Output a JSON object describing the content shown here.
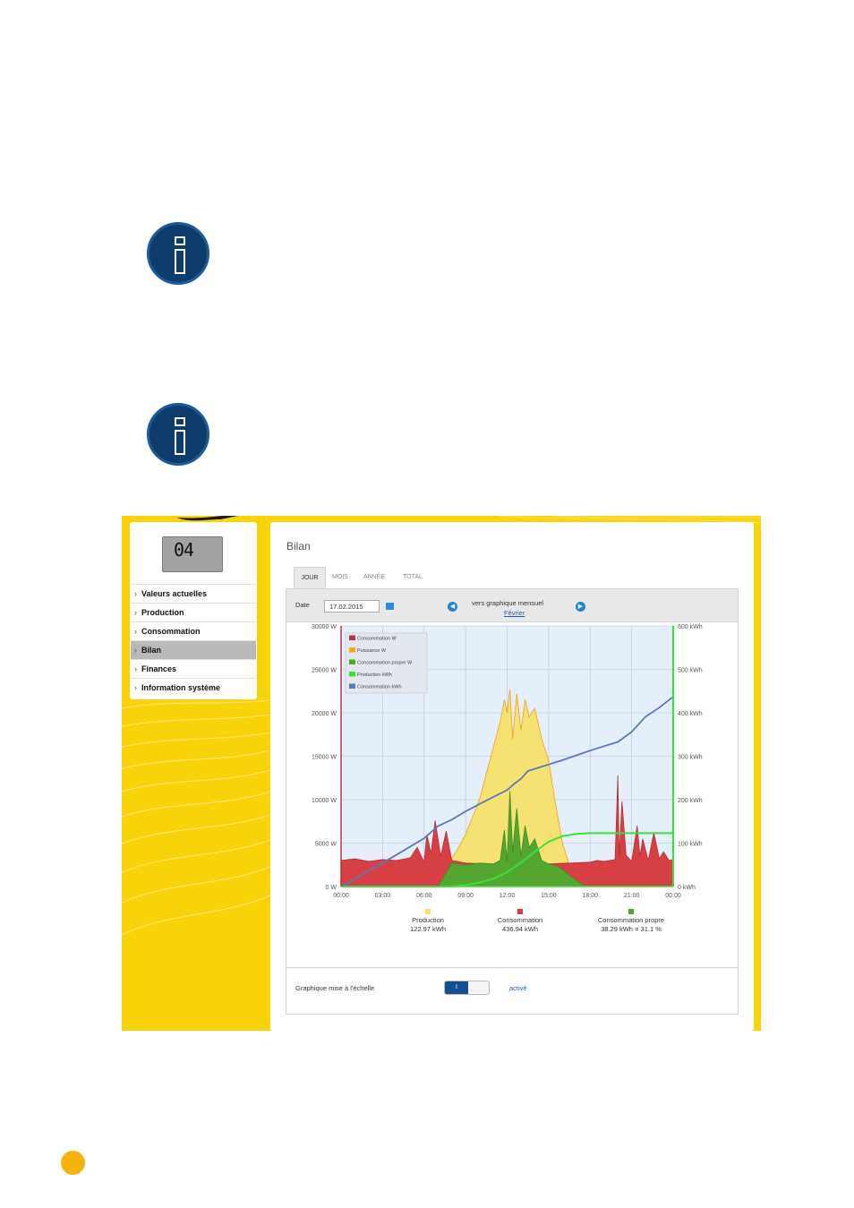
{
  "app": {
    "title": "Bilan",
    "tabs": [
      "JOUR",
      "MOIS",
      "ANNÉE",
      "TOTAL"
    ],
    "active_tab": "JOUR"
  },
  "device": {
    "display_value": "04"
  },
  "sidebar": {
    "items": [
      {
        "label": "Valeurs actuelles"
      },
      {
        "label": "Production"
      },
      {
        "label": "Consommation"
      },
      {
        "label": "Bilan",
        "active": true
      },
      {
        "label": "Finances"
      },
      {
        "label": "Information système"
      }
    ]
  },
  "toolbar": {
    "date_label": "Date",
    "date_value": "17.02.2015",
    "nav_label": "vers graphique mensuel",
    "nav_month": "Février"
  },
  "colors": {
    "production": "#f5e06a",
    "consommation": "#d64045",
    "consommation_propre": "#55a630",
    "production_kwh": "#3ae03a",
    "consommation_kwh": "#5a78b6",
    "plot_background": "#e4effa",
    "accent_blue": "#164f8f"
  },
  "chart_data": {
    "type": "area",
    "x_ticks": [
      "00:00",
      "03:00",
      "06:00",
      "09:00",
      "12:00",
      "15:00",
      "18:00",
      "21:00",
      "00:00"
    ],
    "y_left_ticks": [
      "0 W",
      "5000 W",
      "10000 W",
      "15000 W",
      "20000 W",
      "25000 W",
      "30000 W"
    ],
    "y_right_ticks": [
      "0 kWh",
      "100 kWh",
      "200 kWh",
      "300 kWh",
      "400 kWh",
      "500 kWh",
      "600 kWh"
    ],
    "ylim_left": [
      0,
      30000
    ],
    "ylim_right": [
      0,
      600
    ],
    "x_range_hours": [
      0,
      24
    ],
    "grid": true,
    "legend_position": "top-left",
    "legend": [
      "Consommation W",
      "Puissance W",
      "Consommation propre W",
      "Production kWh",
      "Consommation kWh"
    ],
    "series": [
      {
        "name": "Puissance W",
        "axis": "left",
        "x": [
          0,
          6.4,
          7,
          7.5,
          8,
          8.5,
          9,
          9.5,
          10,
          10.5,
          11,
          11.5,
          11.8,
          12,
          12.2,
          12.4,
          12.7,
          13,
          13.3,
          13.6,
          14,
          14.5,
          15,
          15.5,
          16,
          16.5,
          17,
          17.5,
          18,
          24
        ],
        "y": [
          0,
          0,
          800,
          2000,
          3200,
          4500,
          6000,
          8000,
          10000,
          13000,
          16000,
          19000,
          21500,
          20000,
          22700,
          17000,
          22200,
          18000,
          21500,
          19500,
          20500,
          17000,
          14500,
          9500,
          5000,
          2500,
          1000,
          300,
          0,
          0
        ]
      },
      {
        "name": "Consommation W",
        "axis": "left",
        "x": [
          0,
          1,
          2,
          3,
          4,
          5,
          5.5,
          6,
          6.2,
          6.5,
          6.8,
          7.2,
          7.6,
          8,
          9,
          12,
          15,
          18,
          18.5,
          19,
          19.8,
          20,
          20.1,
          20.3,
          20.6,
          21,
          21.4,
          21.6,
          21.8,
          22.2,
          22.6,
          23,
          23.3,
          23.7,
          24
        ],
        "y": [
          3000,
          3200,
          2900,
          3100,
          3000,
          3300,
          4500,
          2800,
          6000,
          3800,
          7600,
          3500,
          6400,
          3000,
          2700,
          2500,
          2600,
          2800,
          3000,
          2900,
          3100,
          12800,
          3400,
          9800,
          3600,
          2900,
          7000,
          3500,
          5500,
          3000,
          6200,
          3200,
          4000,
          3000,
          3100
        ]
      },
      {
        "name": "Consommation propre W",
        "axis": "left",
        "x": [
          0,
          7,
          7.5,
          8,
          9,
          10,
          11,
          11.5,
          11.8,
          12,
          12.2,
          12.4,
          12.7,
          13,
          13.3,
          13.6,
          14,
          14.5,
          15,
          15.5,
          16,
          16.5,
          17,
          17.5,
          18,
          24
        ],
        "y": [
          0,
          0,
          1300,
          2700,
          2500,
          2700,
          2600,
          3000,
          6500,
          2900,
          11000,
          4000,
          9000,
          3500,
          7000,
          4500,
          5500,
          3000,
          2600,
          2400,
          2000,
          1300,
          700,
          200,
          0,
          0
        ]
      },
      {
        "name": "Production kWh",
        "axis": "right",
        "x": [
          0,
          7,
          8,
          9,
          10,
          11,
          12,
          13,
          14,
          15,
          16,
          17,
          18,
          19,
          24
        ],
        "y": [
          0,
          0,
          0.5,
          3,
          9,
          18,
          33,
          55,
          80,
          103,
          116,
          121,
          122.97,
          122.97,
          122.97
        ]
      },
      {
        "name": "Consommation kWh",
        "axis": "right",
        "x": [
          0,
          3,
          6,
          7,
          8,
          9,
          10,
          11,
          12,
          12.5,
          13,
          13.5,
          14,
          15,
          16,
          17,
          18,
          19,
          20,
          21,
          22,
          23,
          24
        ],
        "y": [
          0,
          54,
          111,
          139,
          154,
          173,
          190,
          206,
          222,
          236,
          248,
          266,
          271,
          281,
          291,
          302,
          313,
          323,
          333,
          356,
          391,
          412,
          436.94
        ]
      }
    ],
    "totals": [
      {
        "label": "Production",
        "value": "122.97 kWh",
        "color": "#f5e06a"
      },
      {
        "label": "Consommation",
        "value": "436.94 kWh",
        "color": "#d64045"
      },
      {
        "label": "Consommation propre",
        "value": "38.29 kWh = 31.1 %",
        "color": "#55a630"
      }
    ]
  },
  "footer": {
    "scale_label": "Graphique mise à l'échelle",
    "toggle_on_label": "I",
    "toggle_status": "activé"
  }
}
